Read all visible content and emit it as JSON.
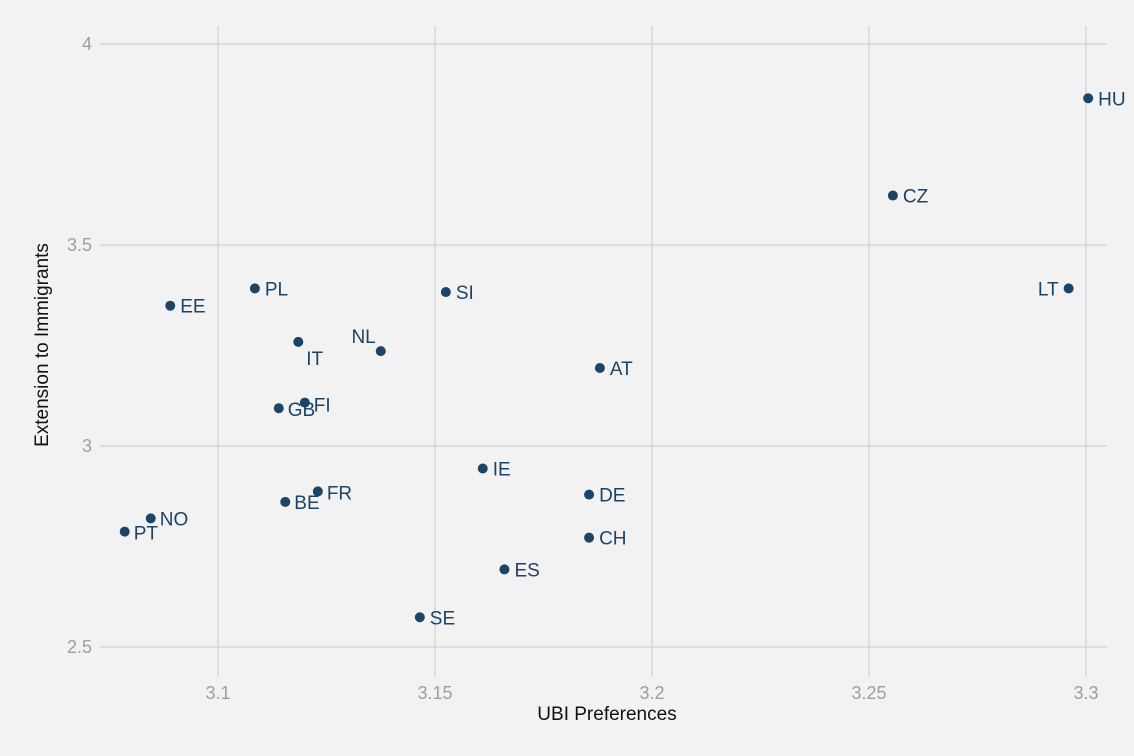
{
  "chart_data": {
    "type": "scatter",
    "xlabel": "UBI Preferences",
    "ylabel": "Extension to Immigrants",
    "xlim": [
      3.0735,
      3.3035
    ],
    "ylim": [
      2.43,
      4.0
    ],
    "xticks": [
      3.1,
      3.15,
      3.2,
      3.25,
      3.3
    ],
    "xtick_labels": [
      "3.1",
      "3.15",
      "3.2",
      "3.25",
      "3.3"
    ],
    "yticks": [
      2.5,
      3.0,
      3.5,
      4.0
    ],
    "ytick_labels": [
      "2.5",
      "3",
      "3.5",
      "4"
    ],
    "grid": true,
    "point_color": "#1c4466",
    "points": [
      {
        "label": "HU",
        "x": 3.3005,
        "y": 3.865
      },
      {
        "label": "CZ",
        "x": 3.2555,
        "y": 3.623
      },
      {
        "label": "LT",
        "x": 3.296,
        "y": 3.392
      },
      {
        "label": "PL",
        "x": 3.1085,
        "y": 3.392
      },
      {
        "label": "SI",
        "x": 3.1525,
        "y": 3.383
      },
      {
        "label": "EE",
        "x": 3.089,
        "y": 3.349
      },
      {
        "label": "IT",
        "x": 3.1185,
        "y": 3.259
      },
      {
        "label": "NL",
        "x": 3.1375,
        "y": 3.236
      },
      {
        "label": "AT",
        "x": 3.188,
        "y": 3.194
      },
      {
        "label": "FI",
        "x": 3.12,
        "y": 3.108
      },
      {
        "label": "GB",
        "x": 3.114,
        "y": 3.094
      },
      {
        "label": "IE",
        "x": 3.161,
        "y": 2.944
      },
      {
        "label": "FR",
        "x": 3.123,
        "y": 2.887
      },
      {
        "label": "DE",
        "x": 3.1855,
        "y": 2.879
      },
      {
        "label": "BE",
        "x": 3.1155,
        "y": 2.861
      },
      {
        "label": "NO",
        "x": 3.0845,
        "y": 2.82
      },
      {
        "label": "PT",
        "x": 3.0785,
        "y": 2.787
      },
      {
        "label": "CH",
        "x": 3.1855,
        "y": 2.772
      },
      {
        "label": "ES",
        "x": 3.166,
        "y": 2.693
      },
      {
        "label": "SE",
        "x": 3.1465,
        "y": 2.574
      }
    ]
  }
}
